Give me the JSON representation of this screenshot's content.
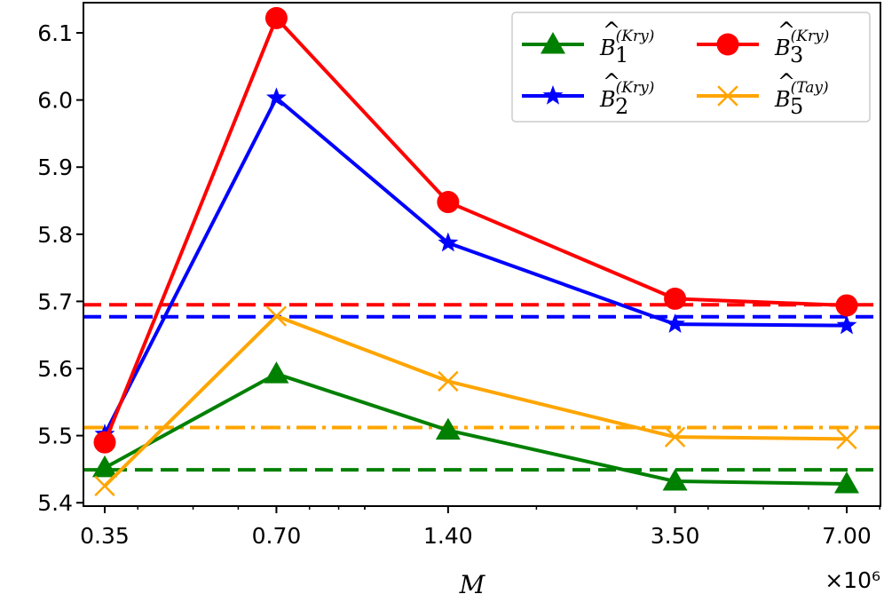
{
  "chart_data": {
    "type": "line",
    "title": "",
    "xlabel": "M",
    "ylabel": "",
    "x_scale": "log",
    "x_offset_label": "×10⁶",
    "x": [
      0.35,
      0.7,
      1.4,
      3.5,
      7.0
    ],
    "xtick_labels": [
      "0.35",
      "0.70",
      "1.40",
      "3.50",
      "7.00"
    ],
    "yticks": [
      "5.4",
      "5.5",
      "5.6",
      "5.7",
      "5.8",
      "5.9",
      "6.0",
      "6.1"
    ],
    "ylim": [
      5.395,
      6.145
    ],
    "grid": false,
    "legend_position": "top-right",
    "series": [
      {
        "name": "B1_Kry",
        "legend_base": "B",
        "legend_sub": "1",
        "legend_sup": "(Kry)",
        "color": "#008000",
        "marker": "triangle",
        "values": [
          5.452,
          5.592,
          5.508,
          5.432,
          5.428
        ],
        "reference": 5.449,
        "reference_style": "dashed"
      },
      {
        "name": "B2_Kry",
        "legend_base": "B",
        "legend_sub": "2",
        "legend_sup": "(Kry)",
        "color": "#0000ff",
        "marker": "star",
        "values": [
          5.502,
          6.003,
          5.787,
          5.666,
          5.664
        ],
        "reference": 5.677,
        "reference_style": "dashed"
      },
      {
        "name": "B3_Kry",
        "legend_base": "B",
        "legend_sub": "3",
        "legend_sup": "(Kry)",
        "color": "#ff0000",
        "marker": "circle",
        "values": [
          5.49,
          6.122,
          5.848,
          5.704,
          5.694
        ],
        "reference": 5.695,
        "reference_style": "dashed"
      },
      {
        "name": "B5_Tay",
        "legend_base": "B",
        "legend_sub": "5",
        "legend_sup": "(Tay)",
        "color": "#ffa500",
        "marker": "x",
        "values": [
          5.425,
          5.678,
          5.581,
          5.498,
          5.495
        ],
        "reference": 5.512,
        "reference_style": "dashdot"
      }
    ],
    "legend_order": [
      0,
      2,
      1,
      3
    ]
  }
}
